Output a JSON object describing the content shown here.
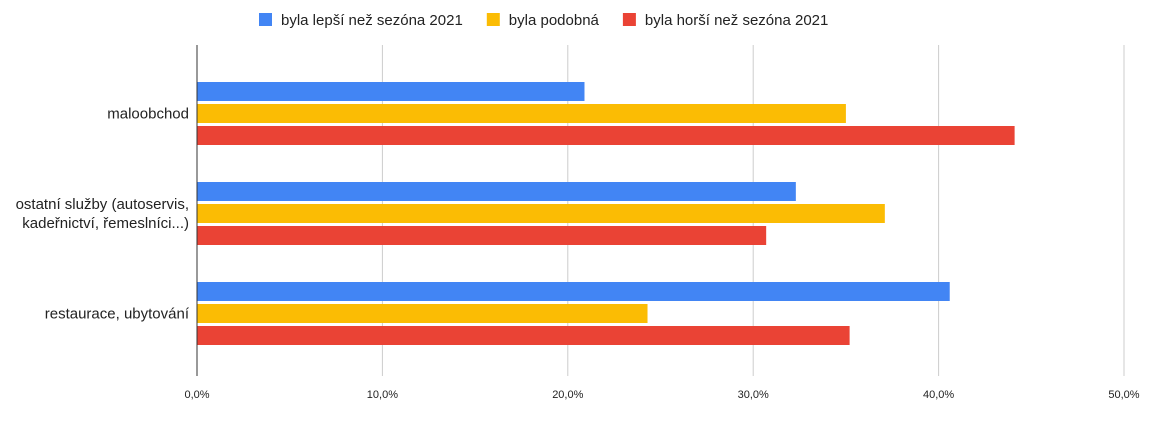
{
  "chart_data": {
    "type": "bar",
    "orientation": "horizontal",
    "categories": [
      [
        "maloobchod"
      ],
      [
        "ostatní služby (autoservis,",
        "kadeřnictví, řemeslníci...)"
      ],
      [
        "restaurace, ubytování"
      ]
    ],
    "series": [
      {
        "name": "byla lepší než sezóna 2021",
        "color": "#4285f4",
        "values": [
          20.9,
          32.3,
          40.6
        ]
      },
      {
        "name": "byla podobná",
        "color": "#fbbc04",
        "values": [
          35.0,
          37.1,
          24.3
        ]
      },
      {
        "name": "byla horší než sezóna 2021",
        "color": "#ea4335",
        "values": [
          44.1,
          30.7,
          35.2
        ]
      }
    ],
    "xlim": [
      0,
      50
    ],
    "xticks": [
      0,
      10,
      20,
      30,
      40,
      50
    ],
    "xtick_labels": [
      "0,0%",
      "10,0%",
      "20,0%",
      "30,0%",
      "40,0%",
      "50,0%"
    ],
    "legend_position": "top",
    "grid": true
  }
}
